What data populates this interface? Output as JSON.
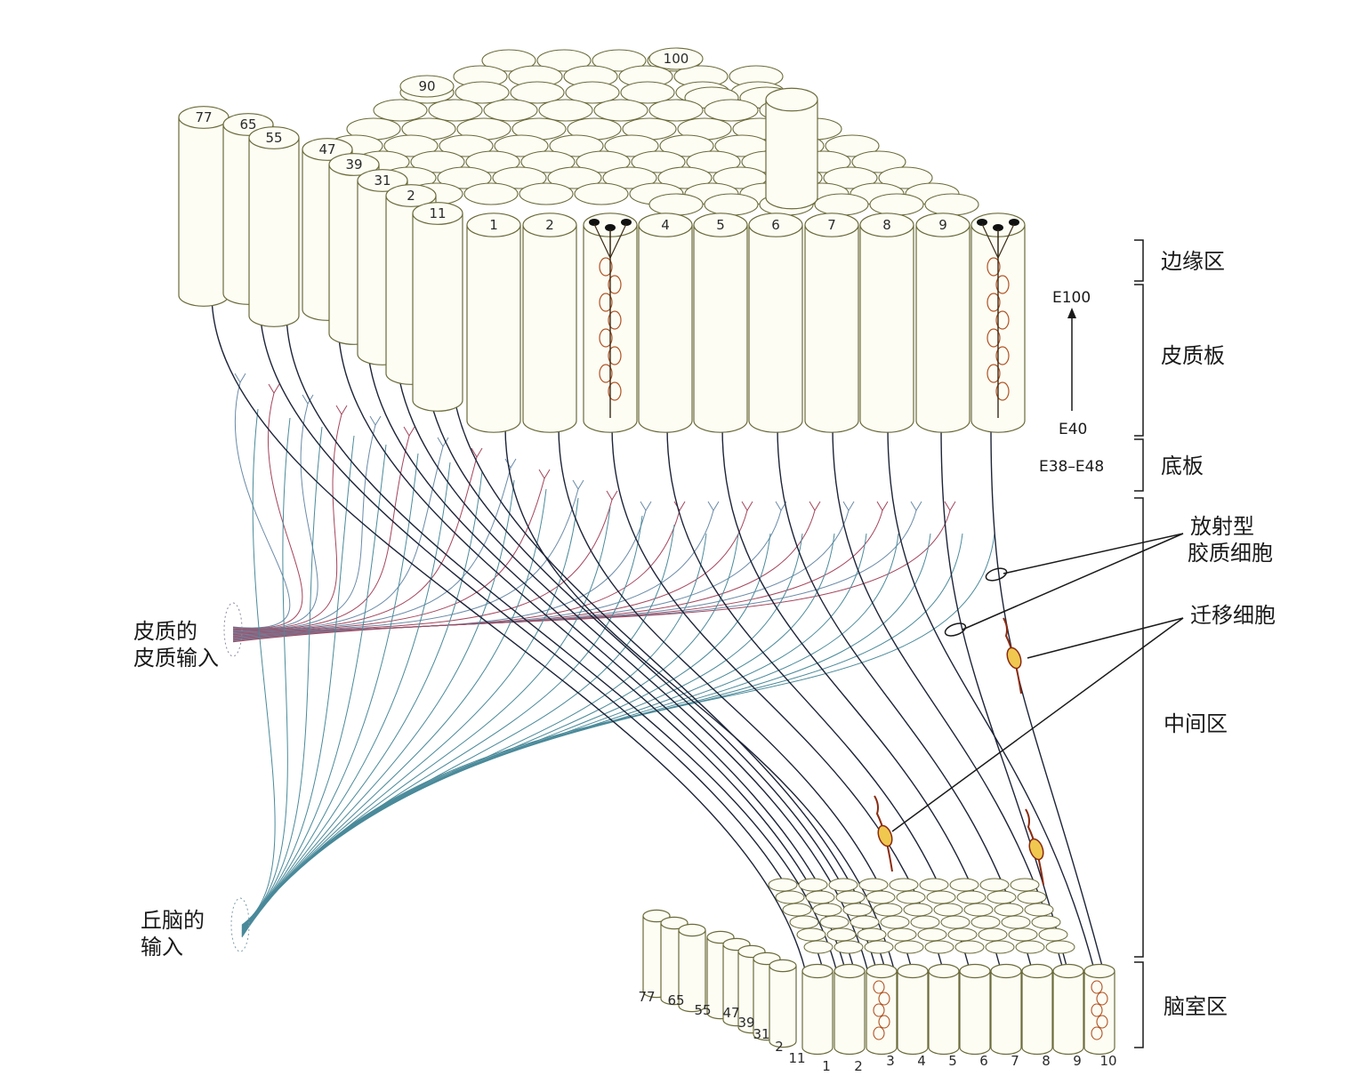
{
  "zones": {
    "marginal": "边缘区",
    "cortical_plate": "皮质板",
    "subplate": "底板",
    "intermediate": "中间区",
    "ventricular": "脑室区"
  },
  "time_axis": {
    "top": "E100",
    "bottom": "E40",
    "subplate_time": "E38–E48"
  },
  "annotations": {
    "radial_glia_line1": "放射型",
    "radial_glia_line2": "胶质细胞",
    "migrating_cells": "迁移细胞",
    "cortical_input_line1": "皮质的",
    "cortical_input_line2": "皮质输入",
    "thalamic_input_line1": "丘脑的",
    "thalamic_input_line2": "输入"
  },
  "top_front_numbers": [
    "1",
    "2",
    "",
    "4",
    "5",
    "6",
    "7",
    "8",
    "9",
    ""
  ],
  "top_side_numbers": [
    "77",
    "65",
    "55",
    "47",
    "39",
    "31",
    "2",
    "11"
  ],
  "top_back_numbers": [
    "90",
    "100"
  ],
  "bottom_front_numbers": [
    "1",
    "2",
    "3",
    "4",
    "5",
    "6",
    "7",
    "8",
    "9",
    "10"
  ],
  "bottom_side_numbers": [
    "77",
    "65",
    "55",
    "47",
    "39",
    "31",
    "2",
    "11"
  ],
  "colors": {
    "column_stroke": "#6b6b3a",
    "column_fill": "#fdfdf4",
    "glia": "#1d2438",
    "cortical_fiber": "#a4455c",
    "thalamic_fiber": "#4a8a9a",
    "migrating": "#8a2a10",
    "migrating_soma": "#f0c850"
  }
}
